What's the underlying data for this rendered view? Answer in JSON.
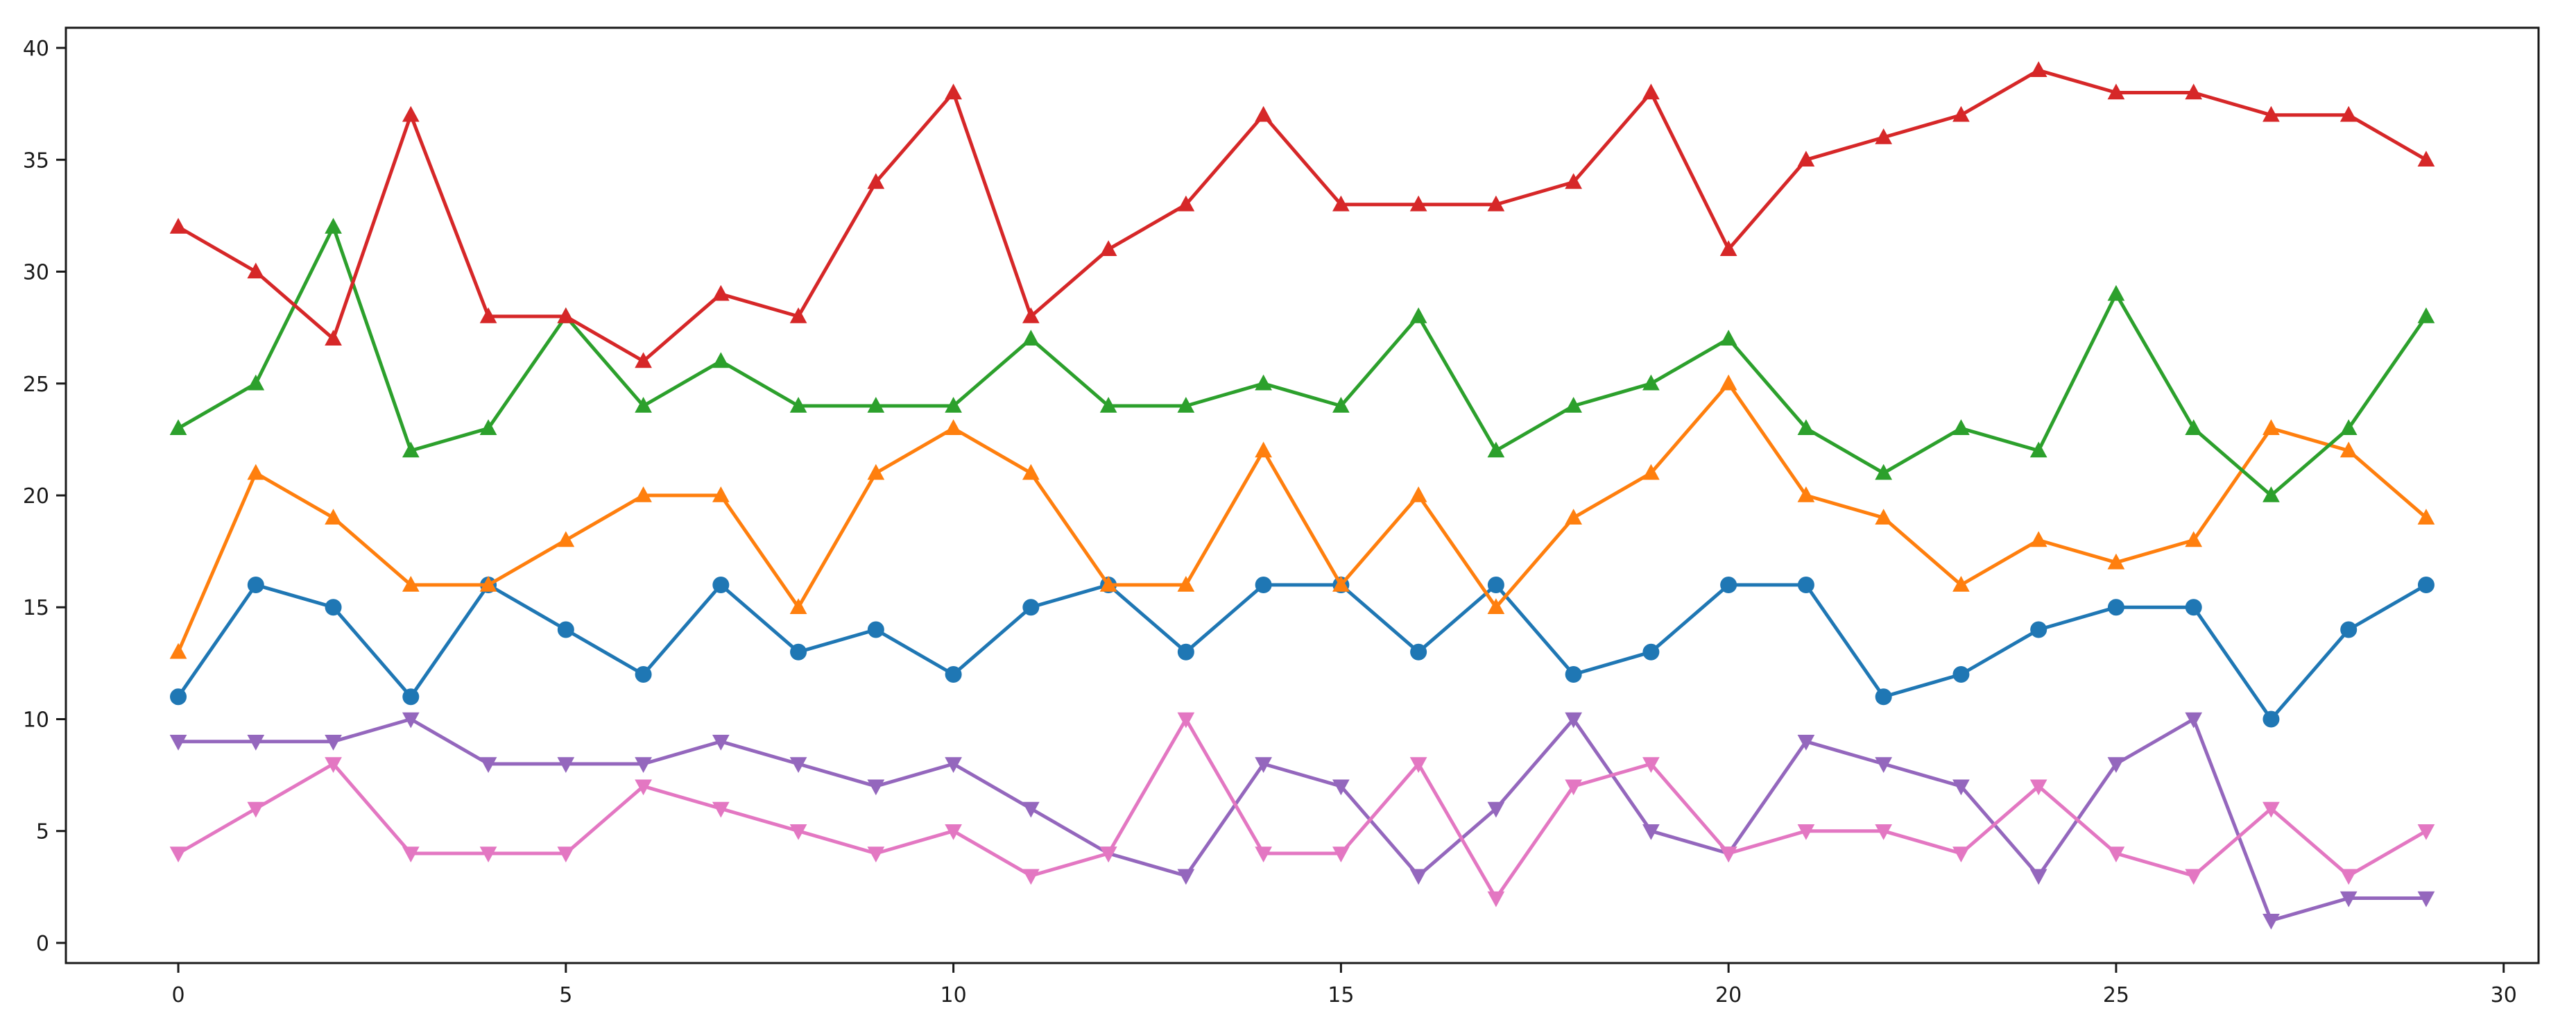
{
  "figure": {
    "background": "#ffffff",
    "spine_color": "#1a1a1a",
    "tick_color": "#1a1a1a",
    "tick_label_color": "#1a1a1a"
  },
  "chart_data": {
    "type": "line",
    "title": "",
    "xlabel": "",
    "ylabel": "",
    "grid": false,
    "legend_position": "none",
    "x": [
      0,
      1,
      2,
      3,
      4,
      5,
      6,
      7,
      8,
      9,
      10,
      11,
      12,
      13,
      14,
      15,
      16,
      17,
      18,
      19,
      20,
      21,
      22,
      23,
      24,
      25,
      26,
      27,
      28,
      29
    ],
    "xticks": [
      "0",
      "5",
      "10",
      "15",
      "20",
      "25",
      "30"
    ],
    "xtick_values": [
      0,
      5,
      10,
      15,
      20,
      25,
      30
    ],
    "yticks": [
      "0",
      "5",
      "10",
      "15",
      "20",
      "25",
      "30",
      "35",
      "40"
    ],
    "ytick_values": [
      0,
      5,
      10,
      15,
      20,
      25,
      30,
      35,
      40
    ],
    "xlim": [
      -1.45,
      30.45
    ],
    "ylim": [
      -0.9,
      40.9
    ],
    "series": [
      {
        "name": "blue",
        "color": "#1f77b4",
        "marker": "circle",
        "values": [
          11,
          16,
          15,
          11,
          16,
          14,
          12,
          16,
          13,
          14,
          12,
          15,
          16,
          13,
          16,
          16,
          13,
          16,
          12,
          13,
          16,
          16,
          11,
          12,
          14,
          15,
          15,
          10,
          14,
          16
        ]
      },
      {
        "name": "orange",
        "color": "#ff7f0e",
        "marker": "triangle-up",
        "values": [
          13,
          21,
          19,
          16,
          16,
          18,
          20,
          20,
          15,
          21,
          23,
          21,
          16,
          16,
          22,
          16,
          20,
          15,
          19,
          21,
          25,
          20,
          19,
          16,
          18,
          17,
          18,
          23,
          22,
          19
        ]
      },
      {
        "name": "green",
        "color": "#2ca02c",
        "marker": "triangle-up",
        "values": [
          23,
          25,
          32,
          22,
          23,
          28,
          24,
          26,
          24,
          24,
          24,
          27,
          24,
          24,
          25,
          24,
          28,
          22,
          24,
          25,
          27,
          23,
          21,
          23,
          22,
          29,
          23,
          20,
          23,
          28
        ]
      },
      {
        "name": "red",
        "color": "#d62728",
        "marker": "triangle-up",
        "values": [
          32,
          30,
          27,
          37,
          28,
          28,
          26,
          29,
          28,
          34,
          38,
          28,
          31,
          33,
          37,
          33,
          33,
          33,
          34,
          38,
          31,
          35,
          36,
          37,
          39,
          38,
          38,
          37,
          37,
          35
        ]
      },
      {
        "name": "purple",
        "color": "#9467bd",
        "marker": "triangle-down",
        "values": [
          9,
          9,
          9,
          10,
          8,
          8,
          8,
          9,
          8,
          7,
          8,
          6,
          4,
          3,
          8,
          7,
          3,
          6,
          10,
          5,
          4,
          9,
          8,
          7,
          3,
          8,
          10,
          1,
          2,
          2
        ]
      },
      {
        "name": "pink",
        "color": "#e377c2",
        "marker": "triangle-down",
        "values": [
          4,
          6,
          8,
          4,
          4,
          4,
          7,
          6,
          5,
          4,
          5,
          3,
          4,
          10,
          4,
          4,
          8,
          2,
          7,
          8,
          4,
          5,
          5,
          4,
          7,
          4,
          3,
          6,
          3,
          5
        ]
      }
    ]
  }
}
